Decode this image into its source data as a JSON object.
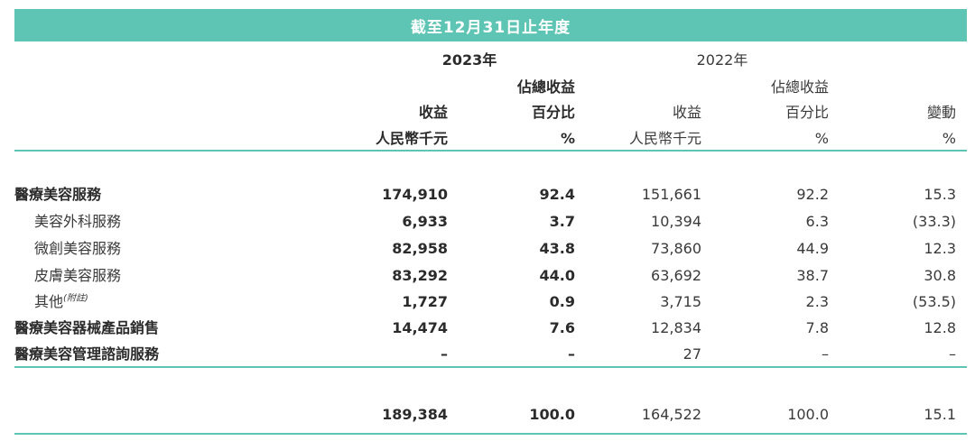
{
  "header": {
    "banner": "截至12月31日止年度",
    "year_2023": "2023年",
    "year_2022": "2022年",
    "columns": {
      "c1": [
        "",
        "收益",
        "人民幣千元"
      ],
      "c2": [
        "佔總收益",
        "百分比",
        "%"
      ],
      "c3": [
        "",
        "收益",
        "人民幣千元"
      ],
      "c4": [
        "佔總收益",
        "百分比",
        "%"
      ],
      "c5": [
        "",
        "變動",
        "%"
      ]
    }
  },
  "rows": [
    {
      "label": "醫療美容服務",
      "note": "",
      "bold": true,
      "indent": false,
      "v": [
        "174,910",
        "92.4",
        "151,661",
        "92.2",
        "15.3"
      ]
    },
    {
      "label": "美容外科服務",
      "note": "",
      "bold": false,
      "indent": true,
      "v": [
        "6,933",
        "3.7",
        "10,394",
        "6.3",
        "(33.3)"
      ]
    },
    {
      "label": "微創美容服務",
      "note": "",
      "bold": false,
      "indent": true,
      "v": [
        "82,958",
        "43.8",
        "73,860",
        "44.9",
        "12.3"
      ]
    },
    {
      "label": "皮膚美容服務",
      "note": "",
      "bold": false,
      "indent": true,
      "v": [
        "83,292",
        "44.0",
        "63,692",
        "38.7",
        "30.8"
      ]
    },
    {
      "label": "其他",
      "note": "(附註)",
      "bold": false,
      "indent": true,
      "v": [
        "1,727",
        "0.9",
        "3,715",
        "2.3",
        "(53.5)"
      ]
    },
    {
      "label": "醫療美容器械產品銷售",
      "note": "",
      "bold": true,
      "indent": false,
      "v": [
        "14,474",
        "7.6",
        "12,834",
        "7.8",
        "12.8"
      ]
    },
    {
      "label": "醫療美容管理諮詢服務",
      "note": "",
      "bold": true,
      "indent": false,
      "v": [
        "–",
        "–",
        "27",
        "–",
        "–"
      ]
    }
  ],
  "total": {
    "v": [
      "189,384",
      "100.0",
      "164,522",
      "100.0",
      "15.1"
    ]
  }
}
